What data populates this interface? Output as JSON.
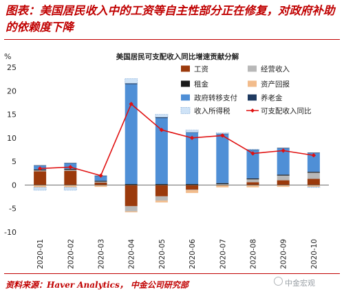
{
  "headline": "图表：美国居民收入中的工资等自主性部分正在修复，对政府补助的依赖度下降",
  "source": "资料来源：Haver Analytics， 中金公司研究部",
  "watermark": "中金宏观",
  "colors": {
    "wage": "#9b3a0c",
    "operating": "#b8b8b8",
    "rent": "#1a1a1a",
    "asset": "#f2bc8c",
    "transfer": "#4f8fd6",
    "pension": "#1f3a60",
    "tax": "#cfe3f7",
    "line": "#e01010",
    "headline": "#c00000"
  },
  "chart_data": {
    "type": "bar",
    "title": "美国居民可支配收入同比增速贡献分解",
    "ylabel": "%",
    "ylim": [
      -10,
      25
    ],
    "yticks": [
      -10,
      -5,
      0,
      5,
      10,
      15,
      20,
      25
    ],
    "grid": false,
    "legend_placement": "top-right",
    "categories": [
      "2020-01",
      "2020-02",
      "2020-03",
      "2020-04",
      "2020-05",
      "2020-06",
      "2020-07",
      "2020-08",
      "2020-09",
      "2020-10"
    ],
    "series": [
      {
        "name": "工资",
        "key": "wage",
        "kind": "bar",
        "values": [
          2.9,
          3.0,
          0.5,
          -4.5,
          -2.4,
          -1.0,
          0.0,
          0.6,
          1.0,
          1.3
        ]
      },
      {
        "name": "经营收入",
        "key": "operating",
        "kind": "bar",
        "values": [
          0.2,
          0.2,
          0.2,
          -1.1,
          -0.9,
          -0.1,
          0.2,
          0.6,
          1.0,
          1.3
        ]
      },
      {
        "name": "租金",
        "key": "rent",
        "kind": "bar",
        "values": [
          0.2,
          0.2,
          0.2,
          0.2,
          0.2,
          0.2,
          0.2,
          0.2,
          0.2,
          0.2
        ]
      },
      {
        "name": "资产回报",
        "key": "asset",
        "kind": "bar",
        "values": [
          -0.5,
          -0.5,
          -0.4,
          -0.2,
          -0.4,
          -0.6,
          -0.5,
          -0.5,
          -0.4,
          -0.4
        ]
      },
      {
        "name": "政府转移支付",
        "key": "transfer",
        "kind": "bar",
        "values": [
          0.8,
          1.2,
          1.0,
          21.2,
          14.0,
          10.9,
          10.4,
          6.0,
          5.6,
          4.0
        ]
      },
      {
        "name": "养老金",
        "key": "pension",
        "kind": "bar",
        "values": [
          0.1,
          0.1,
          0.1,
          0.2,
          0.2,
          0.1,
          0.1,
          0.1,
          0.1,
          0.1
        ]
      },
      {
        "name": "收入所得税",
        "key": "tax",
        "kind": "bar",
        "values": [
          -0.6,
          -0.6,
          0.0,
          1.0,
          0.6,
          0.5,
          0.2,
          0.1,
          0.0,
          -0.1
        ]
      },
      {
        "name": "可支配收入同比",
        "key": "line",
        "kind": "line",
        "values": [
          3.5,
          3.8,
          2.0,
          17.2,
          11.7,
          10.0,
          10.5,
          6.7,
          7.3,
          6.3
        ]
      }
    ]
  }
}
